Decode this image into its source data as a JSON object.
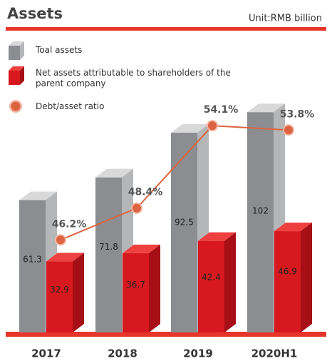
{
  "chart_data": {
    "type": "bar",
    "title": "Assets",
    "subtitle": "Unit:RMB billion",
    "categories": [
      "2017",
      "2018",
      "2019",
      "2020H1"
    ],
    "ylim": [
      0,
      150
    ],
    "y2lim": [
      39.8,
      62.2
    ],
    "series": [
      {
        "name": "Toal assets",
        "color": "#8c8d90",
        "values": [
          61.3,
          71.8,
          92.5,
          102
        ]
      },
      {
        "name": "Net assets attributable to shareholders of the parent company",
        "color": "#d7191f",
        "values": [
          32.9,
          36.7,
          42.4,
          46.9
        ]
      },
      {
        "name": "Debt/asset ratio",
        "type": "line",
        "axis": "y2",
        "color": "#dc6440",
        "values": [
          46.2,
          48.4,
          54.1,
          53.8
        ],
        "value_labels": [
          "46.2%",
          "48.4%",
          "54.1%",
          "53.8%"
        ]
      }
    ]
  }
}
